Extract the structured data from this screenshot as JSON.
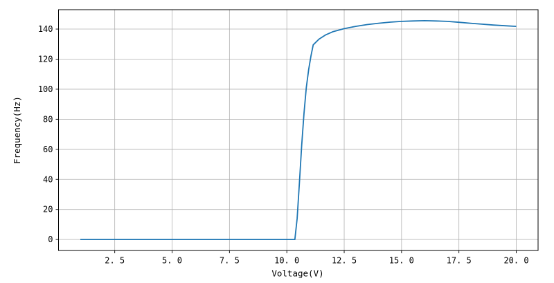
{
  "chart_data": {
    "type": "line",
    "title": "",
    "xlabel": "Voltage(V)",
    "ylabel": "Frequency(Hz)",
    "xlim": [
      0.05,
      20.95
    ],
    "ylim": [
      -7.3,
      152.9
    ],
    "grid": true,
    "legend": "none",
    "x_ticks": [
      2.5,
      5.0,
      7.5,
      10.0,
      12.5,
      15.0,
      17.5,
      20.0
    ],
    "x_tick_labels": [
      "2. 5",
      "5. 0",
      "7. 5",
      "10. 0",
      "12. 5",
      "15. 0",
      "17. 5",
      "20. 0"
    ],
    "y_ticks": [
      0,
      20,
      40,
      60,
      80,
      100,
      120,
      140
    ],
    "y_tick_labels": [
      "0",
      "20",
      "40",
      "60",
      "80",
      "100",
      "120",
      "140"
    ],
    "colors": {
      "line": "#1f77b4",
      "grid": "#b0b0b0",
      "spine": "#000000",
      "background": "#ffffff"
    },
    "series": [
      {
        "points": [
          [
            1.0,
            0
          ],
          [
            2.0,
            0
          ],
          [
            3.0,
            0
          ],
          [
            4.0,
            0
          ],
          [
            5.0,
            0
          ],
          [
            6.0,
            0
          ],
          [
            7.0,
            0
          ],
          [
            8.0,
            0
          ],
          [
            9.0,
            0
          ],
          [
            10.0,
            0
          ],
          [
            10.35,
            0
          ],
          [
            10.45,
            14
          ],
          [
            10.55,
            38
          ],
          [
            10.65,
            63
          ],
          [
            10.75,
            84
          ],
          [
            10.85,
            101
          ],
          [
            10.95,
            113
          ],
          [
            11.05,
            122
          ],
          [
            11.15,
            129.5
          ],
          [
            11.4,
            133.3
          ],
          [
            11.7,
            136.2
          ],
          [
            12.0,
            138.2
          ],
          [
            12.5,
            140.3
          ],
          [
            13.0,
            141.8
          ],
          [
            13.5,
            143.0
          ],
          [
            14.0,
            143.9
          ],
          [
            14.5,
            144.6
          ],
          [
            15.0,
            145.1
          ],
          [
            15.5,
            145.4
          ],
          [
            16.0,
            145.6
          ],
          [
            16.5,
            145.4
          ],
          [
            17.0,
            145.1
          ],
          [
            17.5,
            144.5
          ],
          [
            18.0,
            143.9
          ],
          [
            18.5,
            143.3
          ],
          [
            19.0,
            142.7
          ],
          [
            19.5,
            142.2
          ],
          [
            20.0,
            141.8
          ]
        ]
      }
    ]
  }
}
